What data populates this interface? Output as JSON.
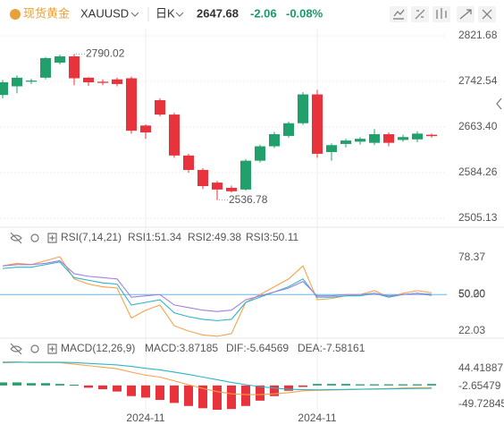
{
  "header": {
    "name": "现货黄金",
    "symbol": "XAUUSD",
    "period": "日K",
    "change": "-2.06",
    "change_pct": "-0.08%",
    "change_color": "#1a9b6a"
  },
  "chart_data": [
    {
      "type": "candlestick",
      "categories": [
        null,
        null,
        null,
        null,
        null,
        null,
        null,
        null,
        null,
        null,
        "2024-11",
        null,
        null,
        null,
        null,
        null,
        null,
        null,
        null,
        null,
        null,
        null,
        "2024-11",
        null,
        null,
        null,
        null,
        null,
        null,
        null,
        null
      ],
      "open": [
        2719,
        2734,
        2742,
        2749,
        2775,
        2786,
        2749,
        2742,
        2746,
        2748,
        2666,
        2710,
        2685,
        2614,
        2589,
        2567,
        2558,
        2555,
        2605,
        2630,
        2648,
        2670,
        2720,
        2620,
        2634,
        2638,
        2636,
        2651,
        2641,
        2642,
        2650
      ],
      "high": [
        2745,
        2753,
        2747,
        2785,
        2789,
        2790.02,
        2750,
        2746,
        2749,
        2751,
        2668,
        2713,
        2688,
        2617,
        2592,
        2570,
        2562,
        2608,
        2633,
        2655,
        2673,
        2724,
        2728,
        2635,
        2643,
        2646,
        2660,
        2654,
        2650,
        2656,
        2652
      ],
      "low": [
        2713,
        2722,
        2738,
        2746,
        2772,
        2736,
        2735,
        2736,
        2734,
        2652,
        2643,
        2682,
        2610,
        2584,
        2556,
        2536.78,
        2550,
        2553,
        2602,
        2627,
        2645,
        2667,
        2610,
        2605,
        2628,
        2633,
        2632,
        2630,
        2638,
        2637,
        2645
      ],
      "close": [
        2741,
        2749,
        2744,
        2783,
        2786,
        2748,
        2741,
        2740,
        2738,
        2657,
        2654,
        2685,
        2614,
        2589,
        2561,
        2555,
        2552,
        2605,
        2630,
        2651,
        2670,
        2720,
        2617,
        2632,
        2640,
        2643,
        2651,
        2636,
        2646,
        2652,
        2647.68
      ],
      "up_color": "#22a06b",
      "down_color": "#e8323c",
      "ylim": [
        2492.7,
        2834.1
      ],
      "yticks": [
        2821.68,
        2742.54,
        {
          "value": 2663.4,
          "label": "2663.40"
        },
        2584.26,
        2505.13
      ],
      "grid": true
    },
    {
      "type": "line",
      "title": "RSI(7,14,21)",
      "series": [
        {
          "name": "RSI1",
          "legend_label": "RSI1:51.34",
          "color": "#f5a34b",
          "values": [
            72,
            74,
            73,
            76,
            79,
            62,
            58,
            56,
            55,
            32,
            38,
            42,
            26,
            22,
            19,
            18,
            20,
            44,
            50,
            56,
            62,
            72,
            46,
            47,
            49,
            50,
            53,
            48,
            51,
            53,
            51.34
          ]
        },
        {
          "name": "RSI2",
          "legend_label": "RSI2:49.38",
          "color": "#2bb5c8",
          "values": [
            70,
            71,
            71,
            73,
            75,
            63,
            61,
            59,
            58,
            42,
            44,
            46,
            36,
            33,
            31,
            30,
            31,
            44,
            48,
            52,
            56,
            62,
            48,
            48,
            49,
            49,
            51,
            48,
            50,
            51,
            49.38
          ]
        },
        {
          "name": "RSI3",
          "legend_label": "RSI3:50.11",
          "color": "#a27fe0",
          "values": [
            72,
            73,
            73,
            74,
            76,
            66,
            64,
            63,
            62,
            48,
            49,
            50,
            42,
            40,
            38,
            37,
            38,
            46,
            49,
            52,
            55,
            60,
            49,
            49,
            50,
            50,
            51,
            49,
            50,
            51,
            50.11
          ]
        }
      ],
      "ylim": [
        17.9,
        85.2
      ],
      "yticks": [
        78.37,
        {
          "value": 50,
          "label": "50.00",
          "line_color": "#6cb4ee"
        },
        22.03
      ],
      "markers": [
        {
          "value": 50.2,
          "label": "50.20"
        }
      ]
    },
    {
      "type": "combo",
      "title": "MACD(12,26,9)",
      "series": [
        {
          "name": "MACD",
          "legend_label": "MACD:3.87185",
          "kind": "bar",
          "color": "#9b6fd0",
          "up_color": "#22a06b",
          "down_color": "#e8323c",
          "values": [
            8,
            8,
            6,
            6,
            4,
            2,
            -6,
            -10,
            -16,
            -28,
            -32,
            -38,
            -46,
            -54,
            -60,
            -64,
            -62,
            -54,
            -40,
            -28,
            -14,
            -4,
            4,
            4,
            4,
            3,
            3,
            3,
            3,
            3,
            3.87185
          ]
        },
        {
          "name": "DIF",
          "legend_label": "DIF:-5.64569",
          "kind": "line",
          "color": "#f5a34b",
          "values": [
            62,
            62,
            60,
            60,
            60,
            56,
            52,
            48,
            44,
            35,
            27,
            22,
            12,
            2,
            -8,
            -16,
            -22,
            -24,
            -24,
            -22,
            -19,
            -14,
            -13,
            -12,
            -11,
            -10,
            -9,
            -8,
            -7,
            -6,
            -5.64569
          ]
        },
        {
          "name": "DEA",
          "legend_label": "DEA:-7.58161",
          "kind": "line",
          "color": "#2bb5c8",
          "values": [
            60,
            61,
            61,
            61,
            61,
            60,
            58,
            56,
            54,
            50,
            45,
            41,
            35,
            29,
            22,
            15,
            8,
            2,
            -3,
            -7,
            -10,
            -11,
            -11.5,
            -11,
            -10.5,
            -10,
            -9.5,
            -9,
            -8.5,
            -8,
            -7.58161
          ]
        }
      ],
      "ylim": [
        -73.3,
        72.6
      ],
      "yticks": [
        44.41887,
        -2.65479,
        -49.72845
      ]
    }
  ]
}
